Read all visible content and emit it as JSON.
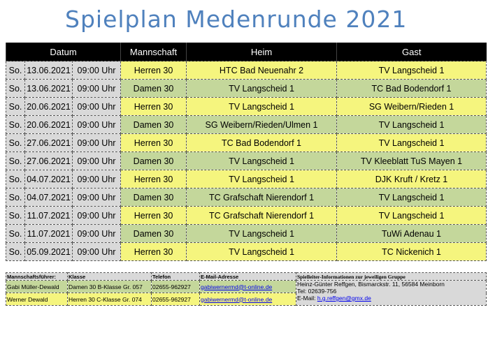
{
  "title": "Spielplan Medenrunde 2021",
  "colors": {
    "title": "#4f81bd",
    "herren": "#f5f57e",
    "damen": "#c4d79b",
    "date": "#d9d9d9",
    "header": "#000000"
  },
  "headers": {
    "datum": "Datum",
    "mannschaft": "Mannschaft",
    "heim": "Heim",
    "gast": "Gast"
  },
  "matches": [
    {
      "day": "So.",
      "date": "13.06.2021",
      "time": "09:00 Uhr",
      "team": "Herren 30",
      "home": "HTC Bad Neuenahr 2",
      "guest": "TV Langscheid 1"
    },
    {
      "day": "So.",
      "date": "13.06.2021",
      "time": "09:00 Uhr",
      "team": "Damen 30",
      "home": "TV Langscheid 1",
      "guest": "TC Bad Bodendorf 1"
    },
    {
      "day": "So.",
      "date": "20.06.2021",
      "time": "09:00 Uhr",
      "team": "Herren 30",
      "home": "TV Langscheid 1",
      "guest": "SG Weibern/Rieden 1"
    },
    {
      "day": "So.",
      "date": "20.06.2021",
      "time": "09:00 Uhr",
      "team": "Damen 30",
      "home": "SG Weibern/Rieden/Ulmen 1",
      "guest": "TV Langscheid 1"
    },
    {
      "day": "So.",
      "date": "27.06.2021",
      "time": "09:00 Uhr",
      "team": "Herren 30",
      "home": "TC Bad Bodendorf 1",
      "guest": "TV Langscheid 1"
    },
    {
      "day": "So.",
      "date": "27.06.2021",
      "time": "09:00 Uhr",
      "team": "Damen 30",
      "home": "TV Langscheid 1",
      "guest": "TV Kleeblatt TuS Mayen 1"
    },
    {
      "day": "So.",
      "date": "04.07.2021",
      "time": "09:00 Uhr",
      "team": "Herren 30",
      "home": "TV Langscheid 1",
      "guest": "DJK Kruft / Kretz 1"
    },
    {
      "day": "So.",
      "date": "04.07.2021",
      "time": "09:00 Uhr",
      "team": "Damen 30",
      "home": "TC Grafschaft Nierendorf 1",
      "guest": "TV Langscheid 1"
    },
    {
      "day": "So.",
      "date": "11.07.2021",
      "time": "09:00 Uhr",
      "team": "Herren 30",
      "home": "TC Grafschaft Nierendorf 1",
      "guest": "TV Langscheid 1"
    },
    {
      "day": "So.",
      "date": "11.07.2021",
      "time": "09:00 Uhr",
      "team": "Damen 30",
      "home": "TV Langscheid 1",
      "guest": "TuWi Adenau 1"
    },
    {
      "day": "So.",
      "date": "05.09.2021",
      "time": "09:00 Uhr",
      "team": "Herren 30",
      "home": "TV Langscheid 1",
      "guest": "TC Nickenich 1"
    }
  ],
  "info": {
    "headers": {
      "captain": "Mannschaftsführer:",
      "klasse": "Klasse",
      "telefon": "Telefon",
      "email": "E-Mail-Adresse",
      "spielleiter": "Spielleiter-Informationen zur jeweiligen Gruppe"
    },
    "rows": [
      {
        "captain": "Gabi Müller-Dewald",
        "klasse": "Damen 30 B-Klasse Gr. 057",
        "telefon": "02655-962927",
        "email": "gabiwernermd@t-online.de"
      },
      {
        "captain": "Werner Dewald",
        "klasse": "Herren 30 C-Klasse Gr. 074",
        "telefon": "02655-962927",
        "email": "gabiwernermd@t-online.de"
      }
    ],
    "spielleiter": {
      "line1": "Heinz-Günter Reffgen, Bismarckstr. 11, 56584 Meinborn",
      "line2": "Tel: 02639-756",
      "email_label": "E-Mail: ",
      "email": "h.g.reffgen@gmx.de"
    }
  }
}
